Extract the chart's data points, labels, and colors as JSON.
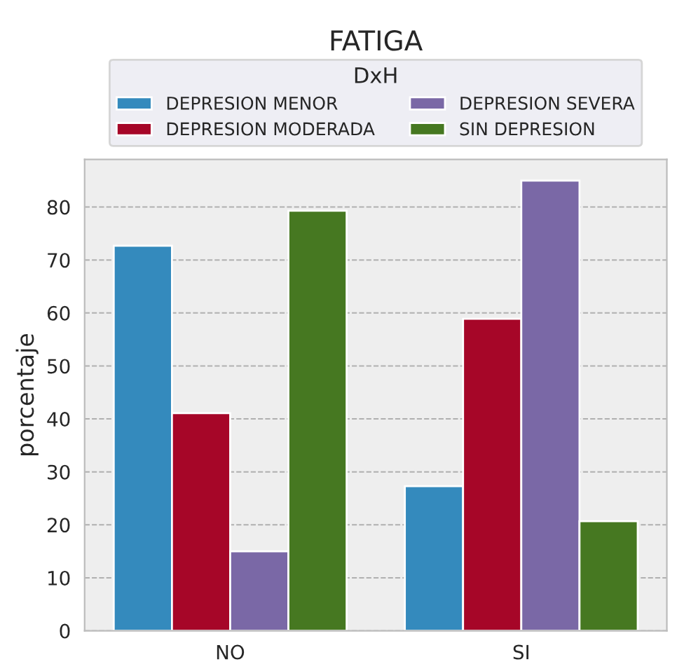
{
  "chart_data": {
    "type": "bar",
    "title": "FATIGA",
    "ylabel": "porcentaje",
    "legend_title": "DxH",
    "categories": [
      "NO",
      "SI"
    ],
    "series": [
      {
        "name": "DEPRESION MENOR",
        "color": "#348abd",
        "values": [
          72.7,
          27.3
        ]
      },
      {
        "name": "DEPRESION MODERADA",
        "color": "#a60628",
        "values": [
          41.1,
          58.9
        ]
      },
      {
        "name": "DEPRESION SEVERA",
        "color": "#7a68a6",
        "values": [
          15.0,
          85.0
        ]
      },
      {
        "name": "SIN DEPRESION",
        "color": "#467821",
        "values": [
          79.3,
          20.7
        ]
      }
    ],
    "ylim": [
      0,
      89
    ],
    "yticks": [
      0,
      10,
      20,
      30,
      40,
      50,
      60,
      70,
      80
    ],
    "grid": true,
    "legend": "top"
  }
}
